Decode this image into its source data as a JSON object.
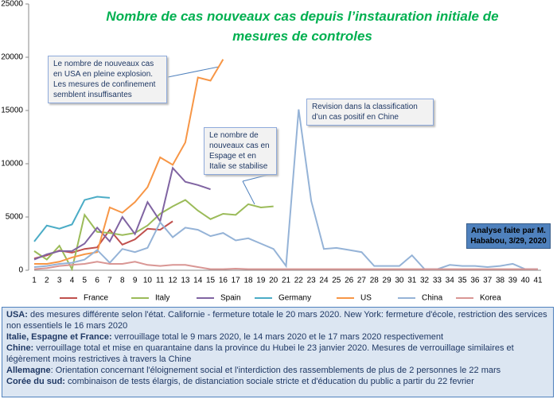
{
  "chart_data": {
    "type": "line",
    "title": "Nombre de cas nouveaux cas depuis l’instauration initiale de mesures de controles",
    "categories": [
      1,
      2,
      3,
      4,
      5,
      6,
      7,
      8,
      9,
      10,
      11,
      12,
      13,
      14,
      15,
      16,
      17,
      18,
      19,
      20,
      21,
      22,
      23,
      24,
      25,
      26,
      27,
      28,
      29,
      30,
      31,
      32,
      33,
      34,
      35,
      36,
      37,
      38,
      39,
      40,
      41
    ],
    "ylim": [
      0,
      25000
    ],
    "yticks": [
      0,
      5000,
      10000,
      15000,
      20000,
      25000
    ],
    "series": [
      {
        "name": "France",
        "color": "#c0504d",
        "values": [
          1100,
          1400,
          1850,
          1650,
          2000,
          2150,
          3800,
          2400,
          2900,
          3900,
          3800,
          4600,
          null,
          null,
          null,
          null,
          null,
          null,
          null,
          null,
          null,
          null,
          null,
          null,
          null,
          null,
          null,
          null,
          null,
          null,
          null,
          null,
          null,
          null,
          null,
          null,
          null,
          null,
          null,
          null,
          null
        ]
      },
      {
        "name": "Italy",
        "color": "#9bbb59",
        "values": [
          1800,
          1000,
          2300,
          100,
          5200,
          3600,
          3500,
          3300,
          3500,
          4200,
          5300,
          6000,
          6600,
          5600,
          4800,
          5300,
          5200,
          6200,
          5900,
          6000,
          null,
          null,
          null,
          null,
          null,
          null,
          null,
          null,
          null,
          null,
          null,
          null,
          null,
          null,
          null,
          null,
          null,
          null,
          null,
          null,
          null
        ]
      },
      {
        "name": "Spain",
        "color": "#8064a2",
        "values": [
          1000,
          1500,
          1800,
          1800,
          2500,
          4000,
          2700,
          5000,
          3400,
          6400,
          4600,
          9600,
          8300,
          8000,
          7600,
          null,
          null,
          null,
          null,
          null,
          null,
          null,
          null,
          null,
          null,
          null,
          null,
          null,
          null,
          null,
          null,
          null,
          null,
          null,
          null,
          null,
          null,
          null,
          null,
          null,
          null
        ]
      },
      {
        "name": "Germany",
        "color": "#4bacc6",
        "values": [
          2700,
          4200,
          3900,
          4300,
          6600,
          6900,
          6800,
          null,
          null,
          null,
          null,
          null,
          null,
          null,
          null,
          null,
          null,
          null,
          null,
          null,
          null,
          null,
          null,
          null,
          null,
          null,
          null,
          null,
          null,
          null,
          null,
          null,
          null,
          null,
          null,
          null,
          null,
          null,
          null,
          null,
          null
        ]
      },
      {
        "name": "US",
        "color": "#f79646",
        "values": [
          600,
          600,
          800,
          1200,
          1500,
          1700,
          5900,
          5400,
          6400,
          7800,
          10600,
          9900,
          12000,
          18100,
          17800,
          19800,
          null,
          null,
          null,
          null,
          null,
          null,
          null,
          null,
          null,
          null,
          null,
          null,
          null,
          null,
          null,
          null,
          null,
          null,
          null,
          null,
          null,
          null,
          null,
          null,
          null
        ]
      },
      {
        "name": "China",
        "color": "#95b3d7",
        "values": [
          300,
          400,
          600,
          700,
          1000,
          1900,
          700,
          2000,
          1700,
          2100,
          4500,
          3100,
          4000,
          3800,
          3200,
          3500,
          2800,
          3000,
          2500,
          2000,
          400,
          15100,
          6500,
          2000,
          2100,
          1900,
          1700,
          400,
          400,
          400,
          1400,
          100,
          100,
          500,
          400,
          400,
          300,
          400,
          600,
          100,
          100
        ]
      },
      {
        "name": "Korea",
        "color": "#d99694",
        "values": [
          100,
          200,
          400,
          500,
          600,
          800,
          600,
          600,
          800,
          500,
          400,
          500,
          500,
          300,
          100,
          100,
          150,
          100,
          100,
          100,
          100,
          100,
          100,
          100,
          100,
          100,
          100,
          100,
          100,
          100,
          100,
          100,
          100,
          100,
          100,
          100,
          100,
          100,
          100,
          100,
          100
        ]
      }
    ],
    "annotations": [
      "Le nombre  de nouveaux cas en USA en pleine  explosion. Les mesures de confinement semblent insuffisantes",
      "Le nombre  de nouveaux cas  en Espage et en Italie se stabilise",
      "Revision  dans la classification d’un cas positif  en Chine",
      "Analyse faite par M. Hababou, 3/29, 2020"
    ]
  },
  "notes": [
    {
      "label": "USA:",
      "text": " des mesures différente selon l'état. Californie - fermeture totale le 20 mars 2020. New York: fermeture d'école, restriction des services non essentiels le 16 mars 2020"
    },
    {
      "label": "Italie, Espagne et France:",
      "text": " verrouillage total le 9 mars 2020, le 14 mars 2020 et le 17 mars 2020 respectivement"
    },
    {
      "label": "Chine:",
      "text": " verrouillage total et mise en quarantaine dans la province du Hubei le 23 janvier 2020. Mesures de verrouillage similaires et légèrement moins restrictives à travers la Chine"
    },
    {
      "label": "Allemagne",
      "text": ": Orientation concernant l'éloignement social et l'interdiction des rassemblements de plus de 2 personnes le 22 mars"
    },
    {
      "label": "Corée du sud:",
      "text": " combinaison de tests élargis, de distanciation sociale stricte et d'éducation du public a partir du 22 fevrier"
    }
  ]
}
